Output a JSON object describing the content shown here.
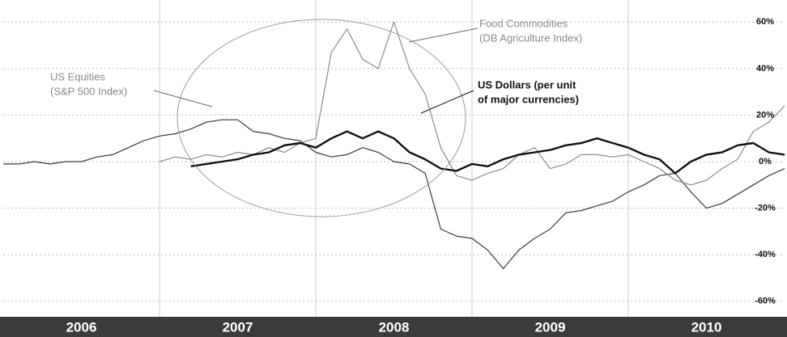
{
  "chart_data": {
    "type": "line",
    "x": [
      2006,
      2006.1,
      2006.2,
      2006.3,
      2006.4,
      2006.5,
      2006.6,
      2006.7,
      2006.8,
      2006.9,
      2007,
      2007.1,
      2007.2,
      2007.3,
      2007.4,
      2007.5,
      2007.6,
      2007.7,
      2007.8,
      2007.9,
      2008,
      2008.1,
      2008.2,
      2008.3,
      2008.4,
      2008.5,
      2008.6,
      2008.7,
      2008.8,
      2008.9,
      2009,
      2009.1,
      2009.2,
      2009.3,
      2009.4,
      2009.5,
      2009.6,
      2009.7,
      2009.8,
      2009.9,
      2010,
      2010.1,
      2010.2,
      2010.3,
      2010.4,
      2010.5,
      2010.6,
      2010.7,
      2010.8,
      2010.9,
      2011
    ],
    "series": [
      {
        "label_lines": [
          "US Equities",
          "(S&P 500 Index)"
        ],
        "color": "#3a3a3a",
        "line_width": 1.2,
        "values": [
          -1,
          -1,
          0,
          -1,
          0,
          0,
          2,
          3,
          6,
          9,
          11,
          12,
          14,
          17,
          18,
          18,
          13,
          12,
          10,
          9,
          4,
          2,
          3,
          6,
          4,
          0,
          -1,
          -5,
          -29,
          -32,
          -33,
          -38,
          -46,
          -38,
          -33,
          -29,
          -22,
          -21,
          -19,
          -17,
          -13,
          -10,
          -6,
          -5,
          -13,
          -20,
          -18,
          -14,
          -10,
          -6,
          -3
        ]
      },
      {
        "label_lines": [
          "Food Commodities",
          "(DB Agriculture Index)"
        ],
        "color": "#8a8a8a",
        "line_width": 1.2,
        "values": [
          null,
          null,
          null,
          null,
          null,
          null,
          null,
          null,
          null,
          null,
          0,
          2,
          1,
          3,
          2,
          4,
          3,
          6,
          4,
          8,
          10,
          47,
          57,
          44,
          40,
          60,
          40,
          29,
          6,
          -6,
          -8,
          -5,
          -3,
          3,
          6,
          -3,
          -1,
          3,
          3,
          2,
          3,
          0,
          -3,
          -8,
          -10,
          -8,
          -3,
          1,
          13,
          17,
          24
        ]
      },
      {
        "label_lines": [
          "US Dollars (per unit",
          "of major currencies)"
        ],
        "color": "#111111",
        "line_width": 2.4,
        "values": [
          null,
          null,
          null,
          null,
          null,
          null,
          null,
          null,
          null,
          null,
          null,
          null,
          -2,
          -1,
          0,
          1,
          3,
          4,
          7,
          8,
          6,
          10,
          13,
          10,
          13,
          10,
          4,
          1,
          -3,
          -4,
          -1,
          -2,
          1,
          3,
          4,
          5,
          7,
          8,
          10,
          8,
          6,
          3,
          1,
          -5,
          0,
          3,
          4,
          7,
          8,
          4,
          3
        ]
      }
    ],
    "xlim": [
      2006,
      2011
    ],
    "xticks": [
      {
        "value": 2006.5,
        "label": "2006"
      },
      {
        "value": 2007.5,
        "label": "2007"
      },
      {
        "value": 2008.5,
        "label": "2008"
      },
      {
        "value": 2009.5,
        "label": "2009"
      },
      {
        "value": 2010.5,
        "label": "2010"
      }
    ],
    "xgrid": [
      2007,
      2008,
      2009,
      2010
    ],
    "ylim": [
      -66,
      66
    ],
    "yticks": [
      {
        "value": 60,
        "label": "60%"
      },
      {
        "value": 40,
        "label": "40%"
      },
      {
        "value": 20,
        "label": "20%"
      },
      {
        "value": 0,
        "label": "0%"
      },
      {
        "value": -20,
        "label": "-20%"
      },
      {
        "value": -40,
        "label": "-40%"
      },
      {
        "value": -60,
        "label": "-60%"
      }
    ],
    "grid": true
  }
}
